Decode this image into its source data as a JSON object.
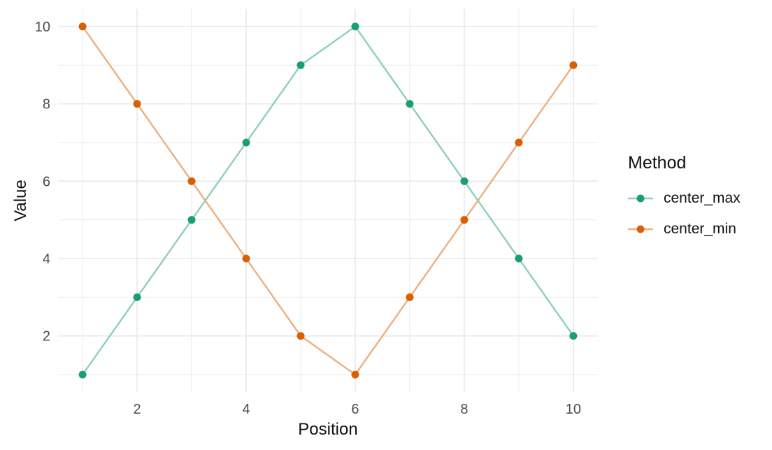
{
  "chart_data": {
    "type": "line",
    "title": "",
    "xlabel": "Position",
    "ylabel": "Value",
    "x": [
      1,
      2,
      3,
      4,
      5,
      6,
      7,
      8,
      9,
      10
    ],
    "series": [
      {
        "name": "center_max",
        "values": [
          1,
          3,
          5,
          7,
          9,
          10,
          8,
          6,
          4,
          2
        ],
        "point_color": "#1B9E77",
        "line_color": "#8DCFBB"
      },
      {
        "name": "center_min",
        "values": [
          10,
          8,
          6,
          4,
          2,
          1,
          3,
          5,
          7,
          9
        ],
        "point_color": "#D95F02",
        "line_color": "#ECAF80"
      }
    ],
    "xlim": [
      0.55,
      10.45
    ],
    "ylim": [
      0.55,
      10.45
    ],
    "x_ticks": [
      2,
      4,
      6,
      8,
      10
    ],
    "y_ticks": [
      2,
      4,
      6,
      8,
      10
    ],
    "x_minor_ticks": [
      1,
      3,
      5,
      7,
      9
    ],
    "y_minor_ticks": [
      1,
      3,
      5,
      7,
      9
    ],
    "grid": true,
    "legend": {
      "title": "Method",
      "entries": [
        "center_max",
        "center_min"
      ],
      "position": "right"
    },
    "style": {
      "background": "#FFFFFF",
      "grid_color": "#EBEBEB",
      "tick_label_color": "#4D4D4D",
      "text_color": "#111111"
    }
  }
}
